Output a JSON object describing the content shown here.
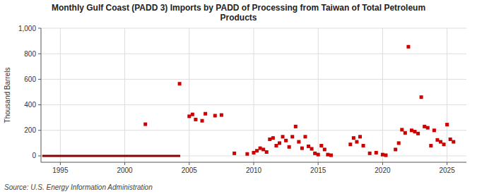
{
  "chart_data": {
    "type": "scatter",
    "title": "Monthly Gulf Coast (PADD 3) Imports by PADD of Processing from Taiwan of Total Petroleum\nProducts",
    "y_label": "Thousand Barrels",
    "source": "Source: U.S. Energy Information Administration",
    "xlim": [
      1993.5,
      2026.5
    ],
    "ylim": [
      -50,
      1000
    ],
    "xticks": [
      1995,
      2000,
      2005,
      2010,
      2015,
      2020,
      2025
    ],
    "yticks": [
      0,
      200,
      400,
      600,
      800,
      {
        "value": 1000,
        "label": "1,000"
      }
    ],
    "grid": true,
    "series": [
      {
        "type": "line",
        "color": "#8b0000",
        "x": [
          1993.6,
          2004.3
        ],
        "values": [
          0,
          0
        ]
      },
      {
        "type": "scatter",
        "color": "#cc0000",
        "marker": "square",
        "x": [
          2001.6,
          2004.25,
          2005.0,
          2005.25,
          2005.5,
          2006.0,
          2006.25,
          2007.0,
          2007.5,
          2008.5,
          2009.5,
          2010.0,
          2010.25,
          2010.5,
          2010.75,
          2011.0,
          2011.25,
          2011.5,
          2011.75,
          2012.0,
          2012.25,
          2012.5,
          2012.75,
          2013.0,
          2013.25,
          2013.5,
          2013.75,
          2014.0,
          2014.25,
          2014.5,
          2014.75,
          2015.0,
          2015.25,
          2015.5,
          2015.75,
          2016.0,
          2017.5,
          2017.75,
          2018.0,
          2018.25,
          2018.5,
          2019.0,
          2019.5,
          2020.0,
          2020.25,
          2021.0,
          2021.25,
          2021.5,
          2021.75,
          2022.0,
          2022.25,
          2022.5,
          2022.75,
          2023.0,
          2023.25,
          2023.5,
          2023.75,
          2024.0,
          2024.25,
          2024.5,
          2024.75,
          2025.0,
          2025.25,
          2025.5
        ],
        "values": [
          248,
          565,
          310,
          325,
          285,
          275,
          330,
          315,
          320,
          20,
          15,
          25,
          40,
          60,
          50,
          30,
          130,
          140,
          80,
          100,
          150,
          120,
          70,
          150,
          230,
          110,
          60,
          150,
          75,
          55,
          20,
          10,
          80,
          50,
          10,
          5,
          90,
          140,
          110,
          150,
          80,
          20,
          25,
          10,
          5,
          50,
          100,
          205,
          180,
          855,
          200,
          190,
          175,
          460,
          230,
          220,
          80,
          200,
          125,
          110,
          90,
          245,
          130,
          110
        ]
      }
    ]
  }
}
